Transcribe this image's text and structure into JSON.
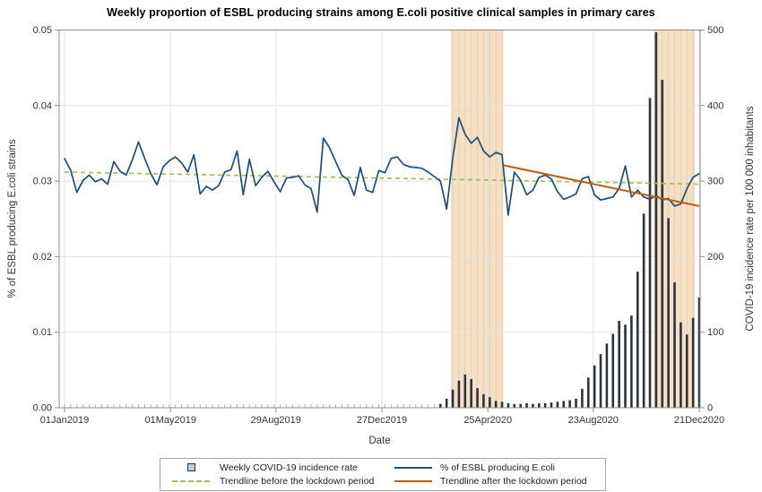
{
  "title": "Weekly proportion of ESBL producing strains among E.coli positive clinical samples in primary cares",
  "chart_data": {
    "type": "mixed-line-bar",
    "title": "Weekly proportion of ESBL producing strains among E.coli positive clinical samples in primary cares",
    "xlabel": "Date",
    "ylabel_left": "% of ESBL producing E.coli strains",
    "ylabel_right": "COVID-19 incidence rate per 100 000 inhabitants",
    "grid": true,
    "legend_position": "bottom",
    "x_tick_labels": [
      "01Jan2019",
      "01May2019",
      "29Aug2019",
      "27Dec2019",
      "25Apr2020",
      "23Aug2020",
      "21Dec2020"
    ],
    "x_tick_weeks": [
      1,
      18.2,
      35.3,
      52.5,
      69.7,
      86.8,
      104
    ],
    "x_minor_ticks": "weekly",
    "weeks_total": 104,
    "x_range": [
      "01Jan2019",
      "21Dec2020"
    ],
    "y_left": {
      "min": 0,
      "max": 0.05,
      "tick_labels": [
        "0.00",
        "0.01",
        "0.02",
        "0.03",
        "0.04",
        "0.05"
      ]
    },
    "y_right": {
      "min": 0,
      "max": 500,
      "tick_labels": [
        "0",
        "100",
        "200",
        "300",
        "400",
        "500"
      ]
    },
    "esbl_series": {
      "name": "% of ESBL producing E.coli",
      "axis": "left",
      "weekly_values": [
        0.033,
        0.0314,
        0.0285,
        0.0301,
        0.0308,
        0.0299,
        0.0303,
        0.0296,
        0.0326,
        0.0313,
        0.0308,
        0.0328,
        0.0352,
        0.033,
        0.031,
        0.0295,
        0.0319,
        0.0327,
        0.0332,
        0.0324,
        0.0312,
        0.0335,
        0.0283,
        0.0293,
        0.0288,
        0.0294,
        0.0312,
        0.0315,
        0.034,
        0.0282,
        0.0329,
        0.0294,
        0.0305,
        0.0313,
        0.0299,
        0.0286,
        0.0304,
        0.0305,
        0.0307,
        0.0295,
        0.029,
        0.0259,
        0.0357,
        0.0344,
        0.0326,
        0.0308,
        0.0302,
        0.0281,
        0.0318,
        0.0288,
        0.0285,
        0.0314,
        0.0311,
        0.033,
        0.0332,
        0.0322,
        0.0319,
        0.0318,
        0.0317,
        0.0312,
        0.0306,
        0.03,
        0.0263,
        0.033,
        0.0384,
        0.0362,
        0.035,
        0.0358,
        0.034,
        0.0332,
        0.0338,
        0.0335,
        0.0255,
        0.0312,
        0.0301,
        0.0282,
        0.0288,
        0.0305,
        0.0308,
        0.0303,
        0.0286,
        0.0276,
        0.0279,
        0.0283,
        0.0303,
        0.0306,
        0.0282,
        0.0275,
        0.0277,
        0.0279,
        0.029,
        0.032,
        0.0279,
        0.0288,
        0.0279,
        0.0276,
        0.0281,
        0.0275,
        0.0277,
        0.0267,
        0.027,
        0.029,
        0.0305,
        0.031
      ]
    },
    "covid_series": {
      "name": "Weekly COVID-19 incidence rate",
      "axis": "right",
      "start_week": 62,
      "weekly_values": [
        5,
        12,
        24,
        36,
        44,
        38,
        26,
        18,
        14,
        9,
        8,
        6,
        5,
        5,
        6,
        5,
        6,
        6,
        7,
        8,
        9,
        10,
        12,
        25,
        40,
        56,
        71,
        85,
        98,
        115,
        110,
        122,
        180,
        257,
        410,
        497,
        434,
        251,
        166,
        113,
        97,
        119,
        146
      ]
    },
    "trend_before": {
      "name": "Trendline before the lockdown period",
      "style": "dashed",
      "start": {
        "week": 1,
        "value": 0.0312
      },
      "end": {
        "week": 104,
        "value": 0.0296
      }
    },
    "trend_after": {
      "name": "Trendline after the lockdown period",
      "style": "solid",
      "start": {
        "week": 72.2,
        "value": 0.0321
      },
      "end": {
        "week": 104,
        "value": 0.0267
      }
    },
    "lockdown_bands": [
      {
        "start_week": 63.7,
        "end_week": 72.2
      },
      {
        "start_week": 96.6,
        "end_week": 103.3
      }
    ],
    "colors": {
      "esbl_line": "#1f4e79",
      "trend_before": "#a6bd5a",
      "trend_after": "#bd5c0f",
      "covid_bar": "#2b333d",
      "covid_marker_fill": "#bccddb",
      "lockdown_band": "#f5e0c6",
      "band_stripe": "rgba(205,165,115,0.30)",
      "grid": "#e4e4e4",
      "frame": "#8e8e8e",
      "tick_text": "#333333"
    }
  },
  "legend": {
    "items": [
      {
        "label": "Weekly COVID-19 incidence rate",
        "swatch": "square"
      },
      {
        "label": "% of ESBL producing E.coli",
        "swatch": "line-blue"
      },
      {
        "label": "Trendline before the lockdown period",
        "swatch": "line-dashed-green"
      },
      {
        "label": "Trendline after the lockdown period",
        "swatch": "line-orange"
      }
    ]
  }
}
